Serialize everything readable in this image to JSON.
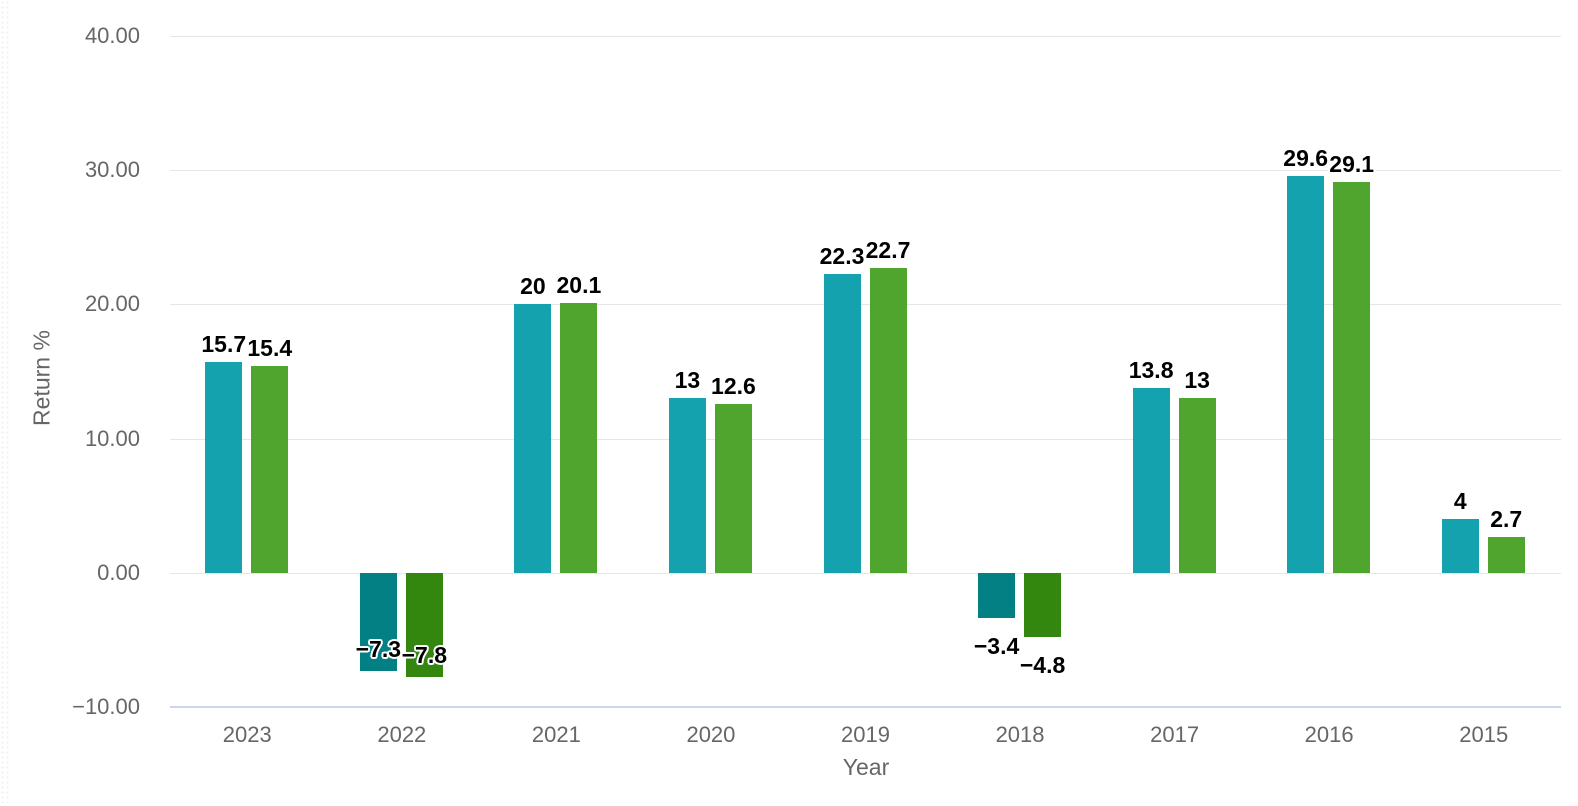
{
  "chart_data": {
    "type": "bar",
    "title": "",
    "xlabel": "Year",
    "ylabel": "Return %",
    "categories": [
      "2023",
      "2022",
      "2021",
      "2020",
      "2019",
      "2018",
      "2017",
      "2016",
      "2015"
    ],
    "series": [
      {
        "name": "series_1_teal",
        "color_positive": "#14a3ae",
        "color_negative": "#028083",
        "values": [
          15.7,
          -7.3,
          20,
          13,
          22.3,
          -3.4,
          13.8,
          29.6,
          4
        ],
        "labels": [
          "15.7",
          "−7.3",
          "20",
          "13",
          "22.3",
          "−3.4",
          "13.8",
          "29.6",
          "4"
        ]
      },
      {
        "name": "series_2_green",
        "color_positive": "#4fa52e",
        "color_negative": "#33860e",
        "values": [
          15.4,
          -7.8,
          20.1,
          12.6,
          22.7,
          -4.8,
          13,
          29.1,
          2.7
        ],
        "labels": [
          "15.4",
          "−7.8",
          "20.1",
          "12.6",
          "22.7",
          "−4.8",
          "13",
          "29.1",
          "2.7"
        ]
      }
    ],
    "ylim": [
      -10,
      40
    ],
    "yticks": [
      {
        "value": 40,
        "label": "40.00"
      },
      {
        "value": 30,
        "label": "30.00"
      },
      {
        "value": 20,
        "label": "20.00"
      },
      {
        "value": 10,
        "label": "10.00"
      },
      {
        "value": 0,
        "label": "0.00"
      },
      {
        "value": -10,
        "label": "−10.00"
      }
    ],
    "grid": true,
    "legend": "none",
    "colors": {
      "gridline": "#e6e6e6",
      "baseline_axis": "#ccd6eb",
      "tick_label": "#666666",
      "axis_title": "#666666",
      "data_label": "#000000"
    }
  }
}
